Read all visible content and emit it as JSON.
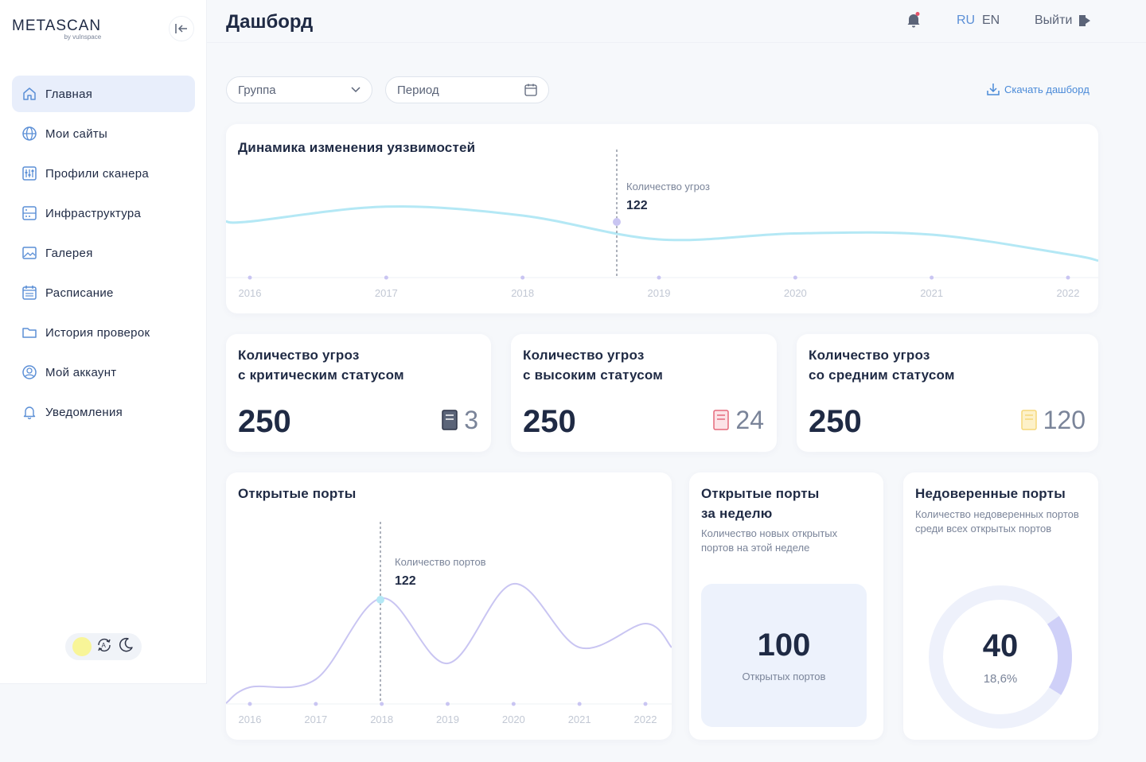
{
  "app": {
    "logo": "METASCAN",
    "logo_sub": "by vulnspace"
  },
  "sidebar": {
    "items": [
      {
        "label": "Главная",
        "icon": "home-icon",
        "active": true
      },
      {
        "label": "Мои сайты",
        "icon": "globe-icon"
      },
      {
        "label": "Профили сканера",
        "icon": "sliders-icon"
      },
      {
        "label": "Инфраструктура",
        "icon": "server-icon"
      },
      {
        "label": "Галерея",
        "icon": "image-icon"
      },
      {
        "label": "Расписание",
        "icon": "calendar-icon"
      },
      {
        "label": "История проверок",
        "icon": "folder-icon"
      },
      {
        "label": "Мой аккаунт",
        "icon": "user-circle-icon"
      },
      {
        "label": "Уведомления",
        "icon": "bell-icon"
      }
    ]
  },
  "header": {
    "title": "Дашборд",
    "lang_ru": "RU",
    "lang_en": "EN",
    "logout": "Выйти"
  },
  "filters": {
    "group_placeholder": "Группа",
    "period_placeholder": "Период",
    "download": "Скачать дашборд"
  },
  "vuln_chart": {
    "title": "Динамика изменения уязвимостей",
    "tooltip_label": "Количество угроз",
    "tooltip_value": "122"
  },
  "stats": [
    {
      "title_line1": "Количество угроз",
      "title_line2": "с критическим статусом",
      "value": "250",
      "count": "3",
      "color": "#2f3548"
    },
    {
      "title_line1": "Количество угроз",
      "title_line2": "с высоким статусом",
      "value": "250",
      "count": "24",
      "color": "#e56a7c"
    },
    {
      "title_line1": "Количество угроз",
      "title_line2": "со средним статусом",
      "value": "250",
      "count": "120",
      "color": "#f5d77a"
    }
  ],
  "ports_chart": {
    "title": "Открытые порты",
    "tooltip_label": "Количество портов",
    "tooltip_value": "122"
  },
  "week_ports": {
    "title_line1": "Открытые порты",
    "title_line2": "за неделю",
    "subtitle": "Количество новых открытых портов на этой неделе",
    "value": "100",
    "label": "Открытых портов"
  },
  "untrusted_ports": {
    "title": "Недоверенные порты",
    "subtitle": "Количество недоверенных портов среди всех открытых портов",
    "value": "40",
    "percent": "18,6%",
    "fraction": 0.186
  },
  "chart_data": [
    {
      "type": "line",
      "x": [
        "2016",
        "2017",
        "2018",
        "2019",
        "2020",
        "2021",
        "2022"
      ],
      "series": [
        {
          "values": [
            150,
            175,
            160,
            120,
            130,
            128,
            95
          ]
        }
      ],
      "color": "#b4e8f5"
    },
    {
      "type": "line",
      "x": [
        "2016",
        "2017",
        "2018",
        "2019",
        "2020",
        "2021",
        "2022"
      ],
      "series": [
        {
          "values": [
            10,
            20,
            122,
            40,
            140,
            60,
            90
          ]
        }
      ],
      "color": "#c9c5f2"
    }
  ]
}
